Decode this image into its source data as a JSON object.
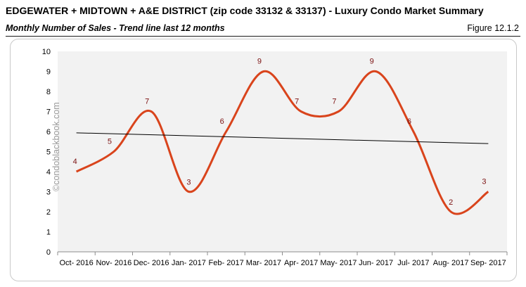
{
  "header": {
    "title": "EDGEWATER + MIDTOWN + A&E DISTRICT (zip code 33132 & 33137) - Luxury Condo Market Summary",
    "subtitle": "Monthly Number of Sales - Trend line last 12 months",
    "figure": "Figure 12.1.2"
  },
  "watermark": "©condoblackbook.com",
  "chart_data": {
    "type": "line",
    "title": "Monthly Number of Sales - Trend line last 12 months",
    "categories": [
      "Oct- 2016",
      "Nov- 2016",
      "Dec- 2016",
      "Jan- 2017",
      "Feb- 2017",
      "Mar- 2017",
      "Apr- 2017",
      "May- 2017",
      "Jun- 2017",
      "Jul- 2017",
      "Aug- 2017",
      "Sep- 2017"
    ],
    "series": [
      {
        "values": [
          4,
          5,
          7,
          3,
          6,
          9,
          7,
          7,
          9,
          6,
          2,
          3
        ],
        "color": "#d9441c",
        "smooth": true,
        "data_labels": true
      }
    ],
    "trendline": {
      "type": "linear",
      "color": "#000000"
    },
    "ylim": [
      0,
      10
    ],
    "yticks": [
      0,
      1,
      2,
      3,
      4,
      5,
      6,
      7,
      8,
      9,
      10
    ],
    "grid": false,
    "legend": "none",
    "plot_background": "#f2f2f2",
    "label_color": "#7b1010"
  }
}
